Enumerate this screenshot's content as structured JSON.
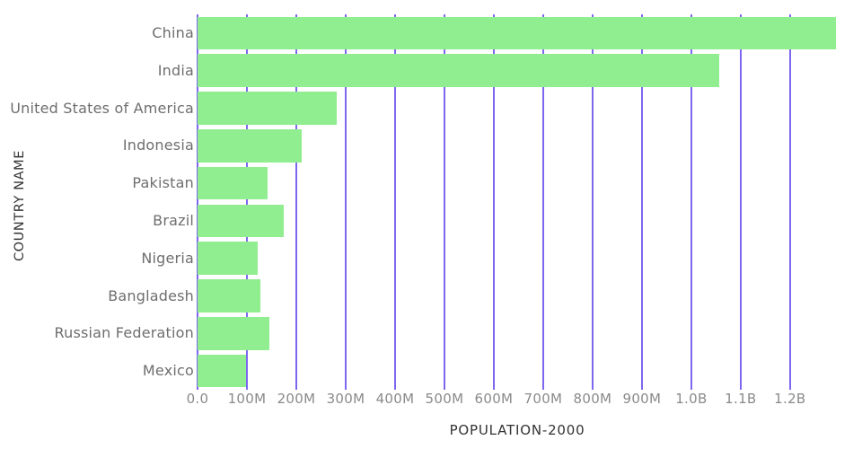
{
  "chart_data": {
    "type": "bar",
    "orientation": "horizontal",
    "title": "",
    "xlabel": "POPULATION-2000",
    "ylabel": "COUNTRY NAME",
    "categories": [
      "China",
      "India",
      "United States of America",
      "Indonesia",
      "Pakistan",
      "Brazil",
      "Nigeria",
      "Bangladesh",
      "Russian Federation",
      "Mexico"
    ],
    "values": [
      1293000000,
      1057000000,
      282000000,
      211000000,
      142000000,
      175000000,
      122000000,
      128000000,
      146000000,
      99000000
    ],
    "x_tick_values": [
      0,
      100000000,
      200000000,
      300000000,
      400000000,
      500000000,
      600000000,
      700000000,
      800000000,
      900000000,
      1000000000,
      1100000000,
      1200000000
    ],
    "x_tick_labels": [
      "0.0",
      "100M",
      "200M",
      "300M",
      "400M",
      "500M",
      "600M",
      "700M",
      "800M",
      "900M",
      "1.0B",
      "1.1B",
      "1.2B"
    ],
    "xlim": [
      0,
      1293000000
    ],
    "grid": "vertical-only",
    "legend": "none",
    "colors": {
      "bar": "#90EE90",
      "gridline": "#7B68EE",
      "category_label": "#6e6e6e",
      "tick_label": "#8a8a8a",
      "axis_title": "#333333",
      "background": "#ffffff"
    }
  }
}
